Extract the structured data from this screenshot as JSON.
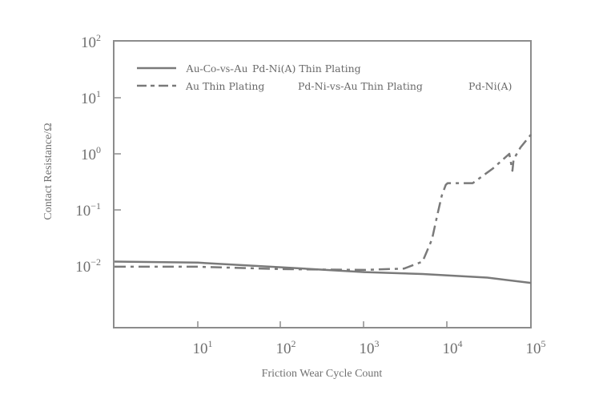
{
  "chart_data": {
    "type": "line",
    "title": "",
    "xlabel": "Friction Wear Cycle Count",
    "ylabel": "Contact Resistance/Ω",
    "xscale": "log",
    "yscale": "log",
    "xlim": [
      1,
      100000
    ],
    "ylim": [
      0.003,
      100
    ],
    "grid": false,
    "legend_position": "upper-left inside",
    "x_ticks": [
      {
        "base": "10",
        "exp": "1",
        "value": 10
      },
      {
        "base": "10",
        "exp": "2",
        "value": 100
      },
      {
        "base": "10",
        "exp": "3",
        "value": 1000
      },
      {
        "base": "10",
        "exp": "4",
        "value": 10000
      },
      {
        "base": "10",
        "exp": "5",
        "value": 100000
      }
    ],
    "y_ticks": [
      {
        "base": "10",
        "exp": "2",
        "value": 100
      },
      {
        "base": "10",
        "exp": "1",
        "value": 10
      },
      {
        "base": "10",
        "exp": "0",
        "value": 1
      },
      {
        "base": "10",
        "exp": "−1",
        "value": 0.1
      },
      {
        "base": "10",
        "exp": "−2",
        "value": 0.01
      }
    ],
    "series": [
      {
        "name": "Au-Co-vs-Au  Pd-Ni(A) Thin Plating",
        "style": "solid",
        "color": "#7a7a7a",
        "x": [
          1,
          10,
          100,
          1000,
          5000,
          10000,
          30000,
          100000
        ],
        "y": [
          0.012,
          0.0115,
          0.0095,
          0.0078,
          0.0072,
          0.0068,
          0.0062,
          0.005
        ]
      },
      {
        "name": "Au Thin Plating  Pd-Ni-vs-Au Thin Plating  Pd-Ni(A)",
        "style": "dash-dot",
        "color": "#7a7a7a",
        "x": [
          1,
          10,
          100,
          1000,
          3000,
          5000,
          6500,
          7500,
          8500,
          9500,
          10000,
          15000,
          20000,
          35000,
          55000,
          60000,
          62000,
          75000,
          100000
        ],
        "y": [
          0.0097,
          0.0097,
          0.0088,
          0.0085,
          0.009,
          0.012,
          0.03,
          0.08,
          0.18,
          0.28,
          0.3,
          0.3,
          0.3,
          0.55,
          1.0,
          0.5,
          0.8,
          1.3,
          2.2
        ]
      }
    ]
  },
  "legend": {
    "row1": {
      "part1": "Au-Co-vs-Au",
      "part2": "Pd-Ni(A) Thin Plating"
    },
    "row2": {
      "part1": "Au Thin Plating",
      "part2": "Pd-Ni-vs-Au Thin Plating",
      "part3": "Pd-Ni(A)"
    }
  },
  "axes": {
    "xlabel": "Friction Wear Cycle Count",
    "ylabel": "Contact Resistance/Ω"
  },
  "colors": {
    "axis": "#8a8a8a",
    "line": "#7a7a7a",
    "text": "#6a6a6a"
  }
}
